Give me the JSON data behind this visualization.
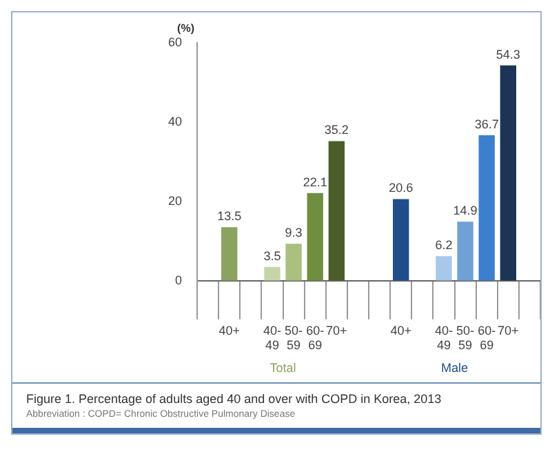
{
  "chart_data": {
    "type": "bar",
    "title": "Figure 1. Percentage of adults aged 40 and over with COPD in Korea, 2013",
    "ylabel": "(%)",
    "annotations": [
      "Abbreviation : COPD= Chronic Obstructive Pulmonary Disease"
    ],
    "categories": [
      null,
      "40+",
      null,
      "40-49",
      "50-59",
      "60-69",
      "70+",
      null,
      null,
      "40+",
      null,
      "40-49",
      "50-59",
      "60-69",
      "70+",
      null
    ],
    "series": [
      {
        "name": "Total",
        "colors": [
          null,
          "#8aa35e",
          null,
          "#c6d5a8",
          "#a9c07f",
          "#6f8f3f",
          "#4a5e2a",
          null,
          null,
          null,
          null,
          null,
          null,
          null,
          null,
          null
        ],
        "values": [
          null,
          13.5,
          null,
          3.5,
          9.3,
          22.1,
          35.2,
          null,
          null,
          null,
          null,
          null,
          null,
          null,
          null,
          null
        ]
      },
      {
        "name": "Male",
        "colors": [
          null,
          null,
          null,
          null,
          null,
          null,
          null,
          null,
          null,
          "#1f4e8c",
          null,
          "#a8c8ea",
          "#6fa0d6",
          "#3b7fcf",
          "#1c3557",
          null
        ],
        "values": [
          null,
          null,
          null,
          null,
          null,
          null,
          null,
          null,
          null,
          20.6,
          null,
          6.2,
          14.9,
          36.7,
          54.3,
          null
        ]
      }
    ],
    "ylim": [
      0,
      60
    ],
    "yticks": [
      0,
      20,
      40,
      60
    ],
    "data_labels": true
  }
}
